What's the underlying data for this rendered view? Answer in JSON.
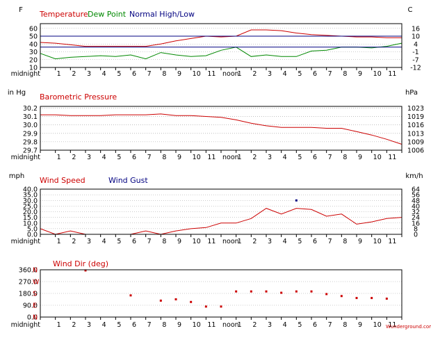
{
  "hours": [
    "midnight",
    "1",
    "2",
    "3",
    "4",
    "5",
    "6",
    "7",
    "8",
    "9",
    "10",
    "11",
    "noon",
    "1",
    "2",
    "3",
    "4",
    "5",
    "6",
    "7",
    "8",
    "9",
    "10",
    "11"
  ],
  "colors": {
    "temperature": "#cc0000",
    "dew_point": "#008800",
    "normal": "#000080",
    "pressure": "#cc0000",
    "wind_speed": "#cc0000",
    "wind_gust": "#000080",
    "wind_dir": "#cc0000",
    "frame": "#000000",
    "grid": "#999999"
  },
  "chart_data": [
    {
      "type": "line",
      "title": "",
      "left_unit": "F",
      "right_unit": "C",
      "legend": [
        "Temperature",
        "Dew Point",
        "Normal High/Low"
      ],
      "y_ticks": [
        10,
        20,
        30,
        40,
        50,
        60
      ],
      "right_ticks": [
        "-12",
        "-7",
        "-1",
        "4",
        "10",
        "16"
      ],
      "ylim": [
        10,
        66
      ],
      "x": [
        0,
        1,
        2,
        3,
        4,
        5,
        6,
        7,
        8,
        9,
        10,
        11,
        12,
        13,
        14,
        15,
        16,
        17,
        18,
        19,
        20,
        21,
        22,
        23,
        24
      ],
      "series": [
        {
          "name": "Temperature",
          "values": [
            42,
            41,
            39,
            37,
            37,
            37,
            37,
            37,
            40,
            44,
            47,
            50,
            49,
            50,
            58,
            58,
            57,
            54,
            52,
            51,
            50,
            49,
            49,
            48,
            48
          ]
        },
        {
          "name": "Dew Point",
          "values": [
            28,
            21,
            23,
            24,
            25,
            24,
            26,
            21,
            29,
            26,
            24,
            25,
            32,
            36,
            24,
            26,
            24,
            24,
            31,
            32,
            36,
            36,
            35,
            37,
            41
          ]
        },
        {
          "name": "Normal High",
          "values": [
            50,
            50,
            50,
            50,
            50,
            50,
            50,
            50,
            50,
            50,
            50,
            50,
            50,
            50,
            50,
            50,
            50,
            50,
            50,
            50,
            50,
            50,
            50,
            50,
            50
          ]
        },
        {
          "name": "Normal Low",
          "values": [
            36,
            36,
            36,
            36,
            36,
            36,
            36,
            36,
            36,
            36,
            36,
            36,
            36,
            36,
            36,
            36,
            36,
            36,
            36,
            36,
            36,
            36,
            36,
            36,
            36
          ]
        }
      ]
    },
    {
      "type": "line",
      "title": "Barometric Pressure",
      "left_unit": "in Hg",
      "right_unit": "hPa",
      "y_ticks": [
        29.7,
        29.8,
        29.9,
        30.0,
        30.1,
        30.2
      ],
      "y_tick_labels": [
        "29.7",
        "29.8",
        "29.9",
        "30.0",
        "30.1",
        "30.2"
      ],
      "right_ticks": [
        "1006",
        "1009",
        "1013",
        "1016",
        "1019",
        "1023"
      ],
      "ylim": [
        29.7,
        30.22
      ],
      "x": [
        0,
        1,
        2,
        3,
        4,
        5,
        6,
        7,
        8,
        9,
        10,
        11,
        12,
        13,
        14,
        15,
        16,
        17,
        18,
        19,
        20,
        21,
        22,
        23,
        24
      ],
      "series": [
        {
          "name": "Barometric Pressure",
          "values": [
            30.12,
            30.12,
            30.11,
            30.11,
            30.11,
            30.12,
            30.12,
            30.12,
            30.13,
            30.11,
            30.11,
            30.1,
            30.09,
            30.06,
            30.02,
            29.99,
            29.97,
            29.97,
            29.97,
            29.96,
            29.96,
            29.92,
            29.88,
            29.83,
            29.77
          ]
        }
      ]
    },
    {
      "type": "line",
      "title": "",
      "left_unit": "mph",
      "right_unit": "km/h",
      "legend": [
        "Wind Speed",
        "Wind Gust"
      ],
      "y_ticks": [
        0,
        5,
        10,
        15,
        20,
        25,
        30,
        35,
        40
      ],
      "y_tick_labels": [
        "0.0",
        "5.0",
        "10.0",
        "15.0",
        "20.0",
        "25.0",
        "30.0",
        "35.0",
        "40.0"
      ],
      "right_ticks": [
        "0",
        "8",
        "16",
        "24",
        "32",
        "40",
        "48",
        "56",
        "64"
      ],
      "ylim": [
        0,
        40
      ],
      "x": [
        0,
        1,
        2,
        3,
        4,
        5,
        6,
        7,
        8,
        9,
        10,
        11,
        12,
        13,
        14,
        15,
        16,
        17,
        18,
        19,
        20,
        21,
        22,
        23,
        24
      ],
      "series": [
        {
          "name": "Wind Speed",
          "values": [
            5,
            0,
            3,
            0,
            0,
            0,
            0,
            3,
            0,
            3,
            5,
            6,
            10,
            10,
            14,
            23,
            18,
            23,
            22,
            16,
            18,
            9,
            11,
            14,
            15
          ]
        },
        {
          "name": "Wind Gust",
          "points": [
            [
              17,
              30
            ]
          ]
        }
      ]
    },
    {
      "type": "scatter",
      "title": "Wind Dir (deg)",
      "y_ticks": [
        0,
        90,
        180,
        270,
        360
      ],
      "y_tick_labels": [
        "0.0",
        "90.0",
        "180.0",
        "270.0",
        "360.0"
      ],
      "compass": [
        "N",
        "E",
        "S",
        "W",
        "N"
      ],
      "ylim": [
        0,
        360
      ],
      "series": [
        {
          "name": "Wind Dir",
          "points": [
            [
              3,
              355
            ],
            [
              6,
              165
            ],
            [
              8,
              125
            ],
            [
              9,
              135
            ],
            [
              10,
              115
            ],
            [
              11,
              80
            ],
            [
              12,
              80
            ],
            [
              13,
              195
            ],
            [
              14,
              195
            ],
            [
              15,
              195
            ],
            [
              16,
              185
            ],
            [
              17,
              195
            ],
            [
              18,
              195
            ],
            [
              19,
              175
            ],
            [
              20,
              160
            ],
            [
              21,
              145
            ],
            [
              22,
              145
            ],
            [
              23,
              140
            ]
          ]
        }
      ]
    }
  ],
  "watermark": "Wunderground.com"
}
